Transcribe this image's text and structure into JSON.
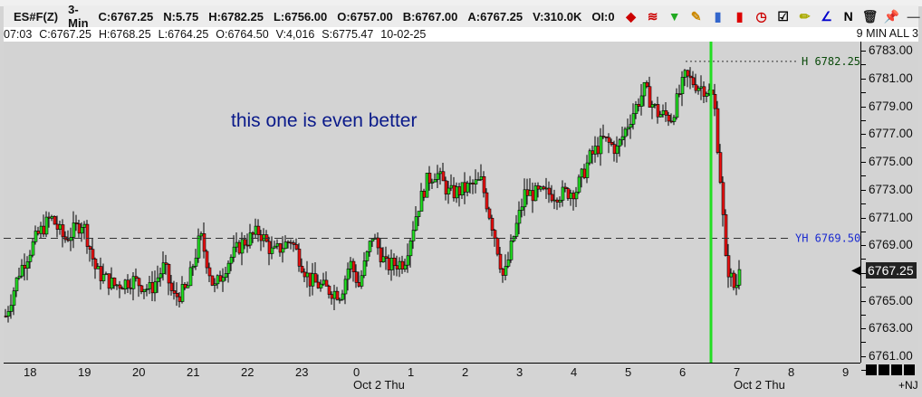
{
  "header": {
    "quote": [
      "ES#F(Z)",
      "3-Min",
      "C:6767.25",
      "N:5.75",
      "H:6782.25",
      "L:6756.00",
      "O:6757.00",
      "B:6767.00",
      "A:6767.25",
      "V:310.0K",
      "OI:0"
    ],
    "icons": [
      "cubes-icon",
      "waves-icon",
      "funnel-icon",
      "pencil-icon",
      "bar-chart-icon",
      "candle-icon",
      "clock-icon",
      "checklist-icon",
      "ruler-pencil-icon",
      "angle-icon",
      "news-icon",
      "trash-icon",
      "pin-icon",
      "minimize-icon",
      "restore-icon",
      "close-icon"
    ],
    "icon_glyphs": [
      "◆",
      "≋",
      "▼",
      "✎",
      "▮",
      "▮",
      "◷",
      "☑",
      "✏",
      "∠",
      "N",
      "🗑",
      "📌",
      "—",
      "▢",
      "✖"
    ]
  },
  "infobar": {
    "items": [
      "07:03",
      "C:6767.25",
      "H:6768.25",
      "L:6764.25",
      "O:6764.50",
      "V:4,016",
      "S:6775.47",
      "10-02-25"
    ],
    "right": "9 MIN ALL 3"
  },
  "annotation": "this one is even better",
  "chart_data": {
    "type": "candlestick",
    "symbol": "ES#F(Z)",
    "interval": "3-Min",
    "y_ticks": [
      "6783.00",
      "6781.00",
      "6779.00",
      "6777.00",
      "6775.00",
      "6773.00",
      "6771.00",
      "6769.00",
      "6767.00",
      "6765.00",
      "6763.00",
      "6761.00"
    ],
    "ylim": [
      6760.5,
      6784.0
    ],
    "x_ticks": [
      "18",
      "19",
      "20",
      "21",
      "22",
      "23",
      "0",
      "1",
      "2",
      "3",
      "4",
      "5",
      "6",
      "7",
      "8",
      "9"
    ],
    "date_labels": [
      {
        "label": "Oct 2 Thu",
        "at": "0"
      },
      {
        "label": "Oct 2 Thu",
        "at": "7"
      }
    ],
    "last_price": "6767.25",
    "levels": [
      {
        "label": "H 6782.25",
        "price": 6782.25,
        "color": "#0a4a0a"
      },
      {
        "label": "YH 6769.50",
        "price": 6769.5,
        "color": "#1a2ad0"
      }
    ],
    "session_line_time": "06:31",
    "colors": {
      "up": "#22e022",
      "down": "#ee1111",
      "session": "#22dd22",
      "background": "#d3d3d3"
    },
    "approx_closes": [
      [
        "17:31",
        6763.9
      ],
      [
        "17:46",
        6767.1
      ],
      [
        "18:06",
        6769.7
      ],
      [
        "18:21",
        6771
      ],
      [
        "18:36",
        6769.4
      ],
      [
        "18:56",
        6770.7
      ],
      [
        "19:11",
        6767.1
      ],
      [
        "19:31",
        6766.1
      ],
      [
        "19:51",
        6766.5
      ],
      [
        "20:11",
        6765.8
      ],
      [
        "20:26",
        6767.5
      ],
      [
        "20:36",
        6765.2
      ],
      [
        "20:51",
        6765.8
      ],
      [
        "21:06",
        6769.7
      ],
      [
        "21:21",
        6765.8
      ],
      [
        "21:36",
        6767.8
      ],
      [
        "21:51",
        6769.1
      ],
      [
        "22:11",
        6770
      ],
      [
        "22:26",
        6768.4
      ],
      [
        "22:46",
        6769.4
      ],
      [
        "23:06",
        6766.5
      ],
      [
        "23:26",
        6765.8
      ],
      [
        "23:41",
        6765.5
      ],
      [
        "23:51",
        6767.8
      ],
      [
        "00:01",
        6766.1
      ],
      [
        "00:16",
        6769.7
      ],
      [
        "00:31",
        6767.5
      ],
      [
        "00:51",
        6767.8
      ],
      [
        "01:06",
        6771.7
      ],
      [
        "01:16",
        6773.6
      ],
      [
        "01:26",
        6774.3
      ],
      [
        "01:41",
        6772.7
      ],
      [
        "01:56",
        6773
      ],
      [
        "02:16",
        6773.6
      ],
      [
        "02:31",
        6769.7
      ],
      [
        "02:41",
        6766.5
      ],
      [
        "02:51",
        6769.4
      ],
      [
        "03:04",
        6772.7
      ],
      [
        "03:26",
        6772.7
      ],
      [
        "03:46",
        6772.7
      ],
      [
        "04:01",
        6773
      ],
      [
        "04:16",
        6775.3
      ],
      [
        "04:31",
        6776.6
      ],
      [
        "04:46",
        6775.9
      ],
      [
        "05:01",
        6778.2
      ],
      [
        "05:16",
        6780.2
      ],
      [
        "05:31",
        6778.5
      ],
      [
        "05:46",
        6778.2
      ],
      [
        "06:01",
        6781.1
      ],
      [
        "06:16",
        6780.5
      ],
      [
        "06:26",
        6780.2
      ],
      [
        "06:33",
        6779.5
      ],
      [
        "06:41",
        6773
      ],
      [
        "06:46",
        6767.8
      ],
      [
        "06:56",
        6765.8
      ],
      [
        "07:03",
        6767.25
      ]
    ]
  },
  "footer": {
    "flag": "+NJ"
  }
}
